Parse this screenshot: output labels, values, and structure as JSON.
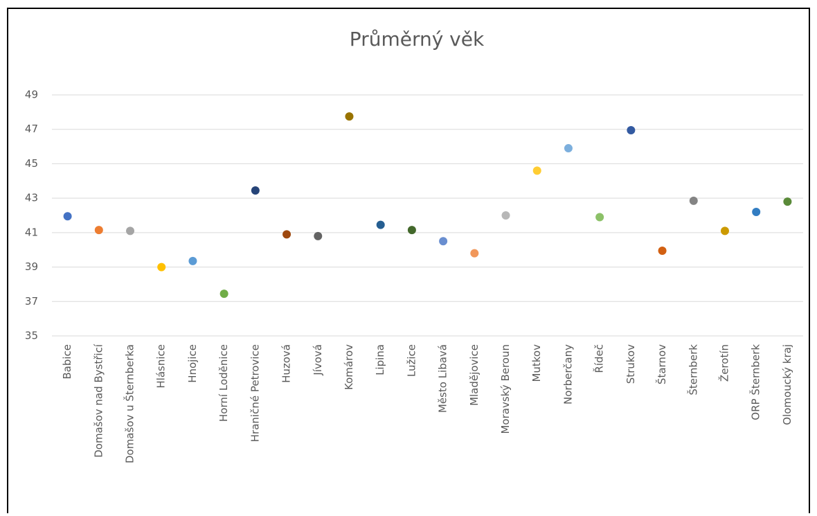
{
  "chart_data": {
    "type": "dot",
    "title": "Průměrný věk",
    "categories": [
      "Babice",
      "Domašov nad Bystřicí",
      "Domašov u Šternberka",
      "Hlásnice",
      "Hnojice",
      "Horní Loděnice",
      "Hraničné Petrovice",
      "Huzová",
      "Jívová",
      "Komárov",
      "Lipina",
      "Lužice",
      "Město Libavá",
      "Mladějovice",
      "Moravský Beroun",
      "Mutkov",
      "Norberčany",
      "Řídeč",
      "Strukov",
      "Štarnov",
      "Šternberk",
      "Žerotín",
      "ORP Šternberk",
      "Olomoucký kraj"
    ],
    "values": [
      41.95,
      41.15,
      41.1,
      39.0,
      39.35,
      37.45,
      43.45,
      40.9,
      40.8,
      47.75,
      41.45,
      41.15,
      40.5,
      39.8,
      42.0,
      44.6,
      45.9,
      41.9,
      46.95,
      39.95,
      42.85,
      41.1,
      42.2,
      42.8
    ],
    "colors": [
      "#4472c4",
      "#ed7d31",
      "#a5a5a5",
      "#ffc000",
      "#5b9bd5",
      "#70ad47",
      "#264478",
      "#9e480e",
      "#636363",
      "#997300",
      "#255e91",
      "#43682b",
      "#698ed0",
      "#f1975a",
      "#b7b7b7",
      "#ffcd33",
      "#7cafdd",
      "#8cc168",
      "#335aa1",
      "#d26012",
      "#848484",
      "#cc9a00",
      "#327dc2",
      "#5a8a39"
    ],
    "ylim": [
      35,
      49
    ],
    "yticks": [
      35,
      37,
      39,
      41,
      43,
      45,
      47,
      49
    ],
    "grid": true
  }
}
